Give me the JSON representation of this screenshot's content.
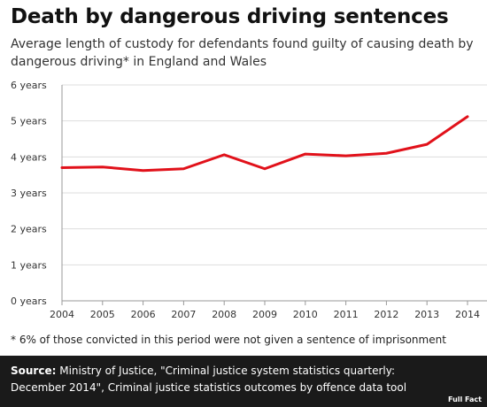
{
  "title": "Death by dangerous driving sentences",
  "subtitle": "Average length of custody for defendants found guilty of causing death by dangerous driving* in England and Wales",
  "footnote": "* 6% of those convicted in this period were not given a sentence of imprisonment",
  "source": {
    "label": "Source:",
    "text": " Ministry of Justice, \"Criminal justice system statistics quarterly: December 2014\", Criminal justice statistics outcomes by offence data tool"
  },
  "brand": "Full Fact",
  "chart_data": {
    "type": "line",
    "title": "Death by dangerous driving sentences",
    "subtitle": "Average length of custody for defendants found guilty of causing death by dangerous driving* in England and Wales",
    "x": [
      2004,
      2005,
      2006,
      2007,
      2008,
      2009,
      2010,
      2011,
      2012,
      2013,
      2014
    ],
    "series": [
      {
        "values": [
          3.7,
          3.72,
          3.62,
          3.67,
          4.06,
          3.67,
          4.08,
          4.03,
          4.1,
          4.35,
          5.12
        ]
      }
    ],
    "y_tick_labels": [
      "0 years",
      "1 years",
      "2 years",
      "3 years",
      "4 years",
      "5 years",
      "6 years"
    ],
    "ylim": [
      0,
      6
    ],
    "xlim": [
      2004,
      2014
    ],
    "grid": "horizontal",
    "colors": {
      "line": "#e1111a",
      "grid": "#dddddd",
      "axis": "#999999"
    }
  }
}
